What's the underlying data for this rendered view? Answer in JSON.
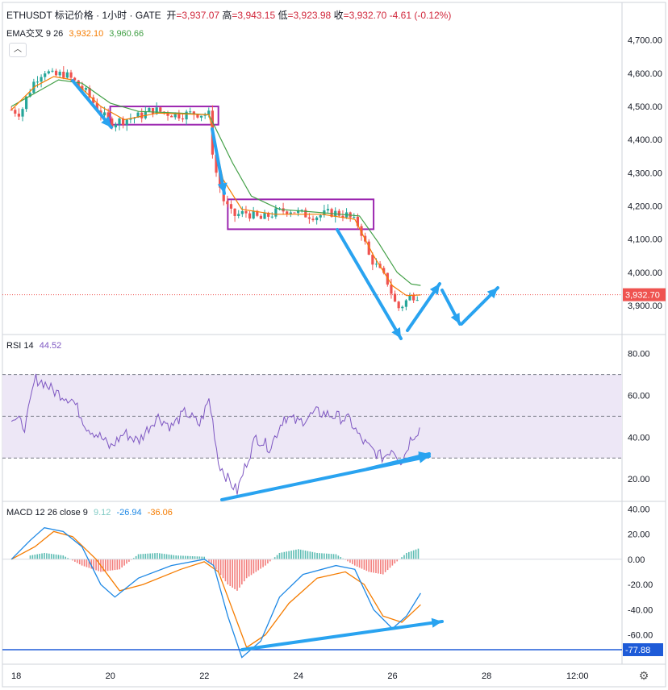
{
  "header": {
    "symbol": "ETHUSDT",
    "price_type": "标记价格",
    "interval": "1小时",
    "exchange": "GATE",
    "open_label": "开",
    "open": "=3,937.07",
    "high_label": "高",
    "high": "=3,943.15",
    "low_label": "低",
    "low": "=3,923.98",
    "close_label": "收",
    "close": "=3,932.70",
    "change": "-4.61 (-0.12%)"
  },
  "ema_legend": {
    "name": "EMA交叉 9 26",
    "fast": "3,932.10",
    "slow": "3,960.66",
    "fast_color": "#f57c00",
    "slow_color": "#43a047"
  },
  "rsi_legend": {
    "name": "RSI 14",
    "value": "44.52",
    "color": "#7e57c2"
  },
  "macd_legend": {
    "name": "MACD 12 26 close 9",
    "hist": "9.12",
    "macd": "-26.94",
    "signal": "-36.06",
    "hist_color": "#80cbc4",
    "macd_color": "#1e88e5",
    "signal_color": "#f57c00"
  },
  "price_badge": "3,932.70",
  "macd_badge": "-77.88",
  "colors": {
    "up": "#26a69a",
    "down": "#ef5350",
    "box": "#9c27b0",
    "arrow": "#29a3f0",
    "rsi_band": "#ede7f6"
  },
  "chart_data": [
    {
      "type": "candlestick",
      "title": "ETHUSDT 标记价格 · 1小时 · GATE",
      "x_ticks": [
        "18",
        "20",
        "22",
        "24",
        "26",
        "28",
        "12:00"
      ],
      "y_ticks": [
        "4,700.00",
        "4,600.00",
        "4,500.00",
        "4,400.00",
        "4,300.00",
        "4,200.00",
        "4,100.00",
        "4,000.00",
        "3,900.00"
      ],
      "ylim": [
        3820,
        4760
      ],
      "last_price": 3932.7,
      "close_path": [
        [
          17.9,
          4490
        ],
        [
          18.1,
          4480
        ],
        [
          18.2,
          4520
        ],
        [
          18.4,
          4580
        ],
        [
          18.6,
          4610
        ],
        [
          18.8,
          4590
        ],
        [
          19.0,
          4600
        ],
        [
          19.2,
          4580
        ],
        [
          19.5,
          4540
        ],
        [
          19.8,
          4480
        ],
        [
          20.0,
          4450
        ],
        [
          20.3,
          4460
        ],
        [
          20.6,
          4470
        ],
        [
          20.9,
          4490
        ],
        [
          21.2,
          4480
        ],
        [
          21.5,
          4475
        ],
        [
          21.8,
          4480
        ],
        [
          22.1,
          4475
        ],
        [
          22.2,
          4330
        ],
        [
          22.4,
          4220
        ],
        [
          22.6,
          4170
        ],
        [
          22.9,
          4180
        ],
        [
          23.2,
          4160
        ],
        [
          23.5,
          4180
        ],
        [
          23.8,
          4190
        ],
        [
          24.1,
          4175
        ],
        [
          24.4,
          4170
        ],
        [
          24.7,
          4180
        ],
        [
          25.0,
          4175
        ],
        [
          25.3,
          4140
        ],
        [
          25.5,
          4050
        ],
        [
          25.7,
          4010
        ],
        [
          25.9,
          3970
        ],
        [
          26.1,
          3890
        ],
        [
          26.2,
          3900
        ],
        [
          26.4,
          3930
        ],
        [
          26.6,
          3932.7
        ]
      ],
      "ema9": [
        [
          17.9,
          4490
        ],
        [
          18.4,
          4560
        ],
        [
          18.8,
          4590
        ],
        [
          19.2,
          4580
        ],
        [
          19.8,
          4500
        ],
        [
          20.3,
          4460
        ],
        [
          21.0,
          4480
        ],
        [
          22.1,
          4475
        ],
        [
          22.4,
          4280
        ],
        [
          22.8,
          4190
        ],
        [
          23.5,
          4175
        ],
        [
          24.5,
          4175
        ],
        [
          25.2,
          4160
        ],
        [
          25.6,
          4050
        ],
        [
          26.0,
          3960
        ],
        [
          26.3,
          3930
        ],
        [
          26.6,
          3932
        ]
      ],
      "ema26": [
        [
          17.9,
          4500
        ],
        [
          18.4,
          4540
        ],
        [
          18.9,
          4580
        ],
        [
          19.4,
          4570
        ],
        [
          20.0,
          4510
        ],
        [
          20.6,
          4485
        ],
        [
          21.5,
          4480
        ],
        [
          22.1,
          4475
        ],
        [
          22.6,
          4330
        ],
        [
          23.0,
          4230
        ],
        [
          23.6,
          4190
        ],
        [
          24.5,
          4180
        ],
        [
          25.3,
          4170
        ],
        [
          25.7,
          4090
        ],
        [
          26.1,
          4000
        ],
        [
          26.4,
          3965
        ],
        [
          26.6,
          3960.66
        ]
      ],
      "boxes": [
        {
          "x": [
            20.0,
            22.3
          ],
          "y": [
            4445,
            4500
          ]
        },
        {
          "x": [
            22.5,
            25.6
          ],
          "y": [
            4130,
            4220
          ]
        }
      ]
    },
    {
      "type": "line",
      "title": "RSI 14",
      "y_ticks": [
        "80.00",
        "60.00",
        "40.00",
        "20.00"
      ],
      "ylim": [
        10,
        88
      ],
      "band": [
        30,
        70
      ],
      "midline": 50,
      "series": [
        {
          "name": "RSI 14",
          "values": [
            [
              17.9,
              50
            ],
            [
              18.2,
              45
            ],
            [
              18.4,
              68
            ],
            [
              18.6,
              66
            ],
            [
              18.8,
              62
            ],
            [
              19.2,
              58
            ],
            [
              19.5,
              45
            ],
            [
              19.8,
              40
            ],
            [
              20.0,
              35
            ],
            [
              20.3,
              42
            ],
            [
              20.6,
              38
            ],
            [
              21.0,
              50
            ],
            [
              21.3,
              45
            ],
            [
              21.6,
              52
            ],
            [
              21.9,
              46
            ],
            [
              22.1,
              58
            ],
            [
              22.2,
              45
            ],
            [
              22.3,
              28
            ],
            [
              22.5,
              20
            ],
            [
              22.7,
              14
            ],
            [
              22.9,
              28
            ],
            [
              23.1,
              40
            ],
            [
              23.4,
              35
            ],
            [
              23.7,
              50
            ],
            [
              24.0,
              47
            ],
            [
              24.4,
              52
            ],
            [
              24.8,
              50
            ],
            [
              25.1,
              48
            ],
            [
              25.3,
              40
            ],
            [
              25.5,
              35
            ],
            [
              25.8,
              30
            ],
            [
              26.0,
              35
            ],
            [
              26.2,
              28
            ],
            [
              26.4,
              40
            ],
            [
              26.6,
              44.52
            ]
          ]
        }
      ]
    },
    {
      "type": "line",
      "title": "MACD 12 26 close 9",
      "y_ticks": [
        "40.00",
        "20.00",
        "0.00",
        "-20.00",
        "-40.00",
        "-60.00"
      ],
      "ylim": [
        -82,
        44
      ],
      "series": [
        {
          "name": "MACD",
          "values": [
            [
              17.9,
              0
            ],
            [
              18.3,
              15
            ],
            [
              18.6,
              25
            ],
            [
              19.0,
              22
            ],
            [
              19.4,
              10
            ],
            [
              19.8,
              -20
            ],
            [
              20.1,
              -30
            ],
            [
              20.6,
              -15
            ],
            [
              21.3,
              -5
            ],
            [
              22.0,
              0
            ],
            [
              22.2,
              -5
            ],
            [
              22.5,
              -45
            ],
            [
              22.8,
              -77.88
            ],
            [
              23.2,
              -65
            ],
            [
              23.6,
              -30
            ],
            [
              24.1,
              -12
            ],
            [
              24.8,
              -5
            ],
            [
              25.2,
              -8
            ],
            [
              25.6,
              -40
            ],
            [
              26.0,
              -55
            ],
            [
              26.3,
              -45
            ],
            [
              26.6,
              -26.94
            ]
          ]
        },
        {
          "name": "Signal",
          "values": [
            [
              17.9,
              0
            ],
            [
              18.4,
              10
            ],
            [
              18.8,
              22
            ],
            [
              19.2,
              18
            ],
            [
              19.7,
              0
            ],
            [
              20.2,
              -25
            ],
            [
              20.7,
              -20
            ],
            [
              21.5,
              -8
            ],
            [
              22.0,
              -2
            ],
            [
              22.3,
              -10
            ],
            [
              22.6,
              -40
            ],
            [
              22.9,
              -70
            ],
            [
              23.3,
              -60
            ],
            [
              23.8,
              -35
            ],
            [
              24.4,
              -15
            ],
            [
              25.0,
              -10
            ],
            [
              25.4,
              -20
            ],
            [
              25.8,
              -45
            ],
            [
              26.2,
              -50
            ],
            [
              26.6,
              -36.06
            ]
          ]
        }
      ],
      "histogram": [
        [
          18.3,
          3
        ],
        [
          18.6,
          5
        ],
        [
          19.0,
          3
        ],
        [
          19.4,
          -5
        ],
        [
          19.8,
          -10
        ],
        [
          20.2,
          -8
        ],
        [
          20.6,
          4
        ],
        [
          21.0,
          5
        ],
        [
          21.4,
          3
        ],
        [
          22.0,
          2
        ],
        [
          22.3,
          -10
        ],
        [
          22.5,
          -20
        ],
        [
          22.7,
          -25
        ],
        [
          22.9,
          -15
        ],
        [
          23.3,
          -5
        ],
        [
          23.6,
          5
        ],
        [
          24.0,
          8
        ],
        [
          24.4,
          5
        ],
        [
          24.8,
          4
        ],
        [
          25.2,
          -5
        ],
        [
          25.5,
          -10
        ],
        [
          25.8,
          -12
        ],
        [
          26.0,
          -5
        ],
        [
          26.3,
          5
        ],
        [
          26.6,
          9.12
        ]
      ]
    }
  ]
}
